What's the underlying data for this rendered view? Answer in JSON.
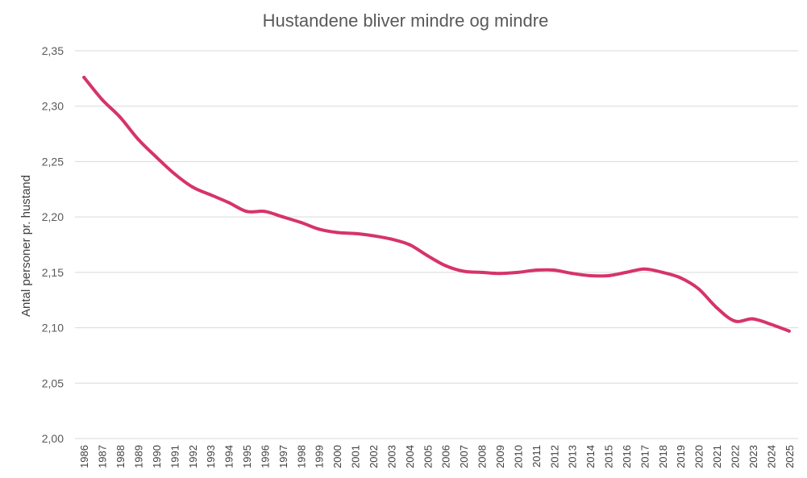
{
  "chart_data": {
    "type": "line",
    "title": "Hustandene bliver mindre og mindre",
    "xlabel": "",
    "ylabel": "Antal personer pr. hustand",
    "ylim": [
      2.0,
      2.35
    ],
    "yticks": [
      "2,00",
      "2,05",
      "2,10",
      "2,15",
      "2,20",
      "2,25",
      "2,30",
      "2,35"
    ],
    "grid": true,
    "legend": "none",
    "line_color": "#d6336c",
    "categories": [
      "1986",
      "1987",
      "1988",
      "1989",
      "1990",
      "1991",
      "1992",
      "1993",
      "1994",
      "1995",
      "1996",
      "1997",
      "1998",
      "1999",
      "2000",
      "2001",
      "2002",
      "2003",
      "2004",
      "2005",
      "2006",
      "2007",
      "2008",
      "2009",
      "2010",
      "2011",
      "2012",
      "2013",
      "2014",
      "2015",
      "2016",
      "2017",
      "2018",
      "2019",
      "2020",
      "2021",
      "2022",
      "2023",
      "2024",
      "2025"
    ],
    "series": [
      {
        "values": [
          2.326,
          2.306,
          2.29,
          2.27,
          2.254,
          2.239,
          2.227,
          2.22,
          2.213,
          2.205,
          2.205,
          2.2,
          2.195,
          2.189,
          2.186,
          2.185,
          2.183,
          2.18,
          2.175,
          2.165,
          2.156,
          2.151,
          2.15,
          2.149,
          2.15,
          2.152,
          2.152,
          2.149,
          2.147,
          2.147,
          2.15,
          2.153,
          2.15,
          2.145,
          2.135,
          2.118,
          2.106,
          2.108,
          2.103,
          2.097
        ]
      }
    ]
  }
}
